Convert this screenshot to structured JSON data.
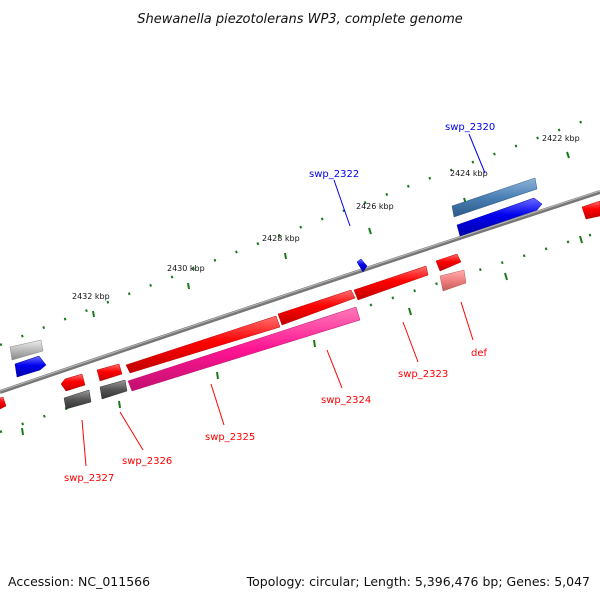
{
  "title": "Shewanella piezotolerans WP3, complete genome",
  "footer": {
    "accession": "Accession: NC_011566",
    "summary": "Topology: circular; Length: 5,396,476 bp; Genes: 5,047"
  },
  "tick_labels": [
    "2422 kbp",
    "2424 kbp",
    "2426 kbp",
    "2428 kbp",
    "2430 kbp",
    "2432 kbp"
  ],
  "gene_labels": {
    "swp_2320": "swp_2320",
    "swp_2322": "swp_2322",
    "def": "def",
    "swp_2323": "swp_2323",
    "swp_2324": "swp_2324",
    "swp_2325": "swp_2325",
    "swp_2326": "swp_2326",
    "swp_2327": "swp_2327"
  },
  "colors": {
    "red": "#ff0000",
    "blue": "#0000ee",
    "steel_blue": "#4a7fb5",
    "magenta": "#ff1493",
    "salmon": "#f08080",
    "dark_gray": "#555555",
    "light_gray": "#bbbbbb",
    "backbone": "#777777",
    "tick_green": "#1a7a1a"
  }
}
